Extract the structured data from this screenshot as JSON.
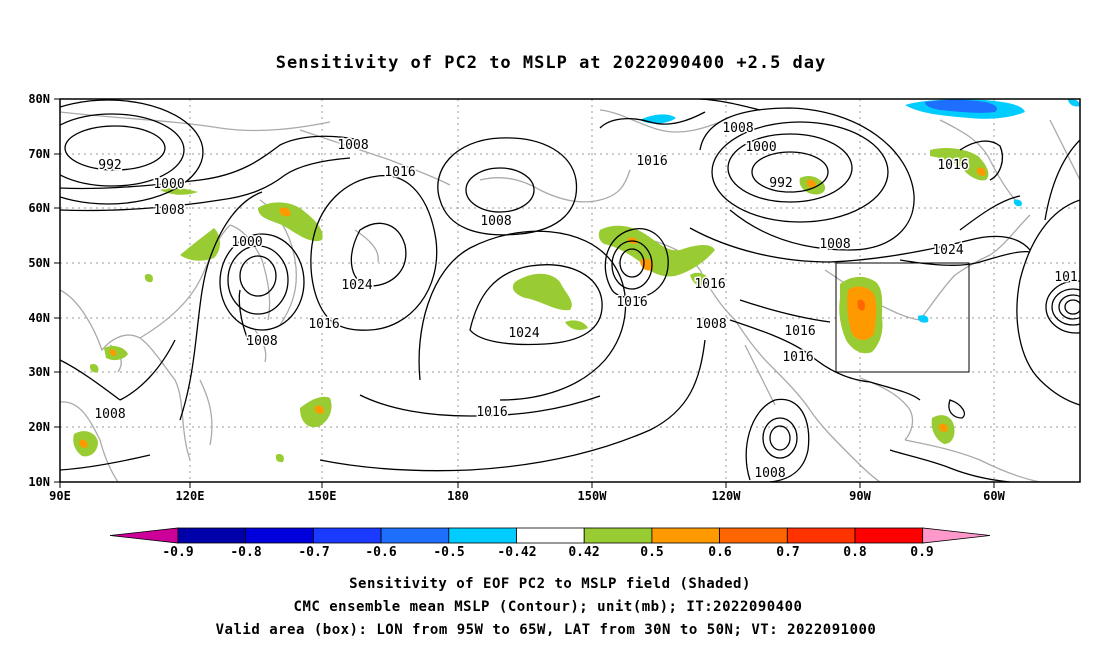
{
  "title": "Sensitivity of PC2 to MSLP at 2022090400 +2.5 day",
  "lat_ticks": [
    "80N",
    "70N",
    "60N",
    "50N",
    "40N",
    "30N",
    "20N",
    "10N"
  ],
  "lon_ticks": [
    "90E",
    "120E",
    "150E",
    "180",
    "150W",
    "120W",
    "90W",
    "60W"
  ],
  "contour_labels": [
    "992",
    "1000",
    "1008",
    "1008",
    "1016",
    "1000",
    "1024",
    "1008",
    "1016",
    "1008",
    "1016",
    "1024",
    "1016",
    "1016",
    "1008",
    "1008",
    "1000",
    "992",
    "1008",
    "1016",
    "1024",
    "1016",
    "1016",
    "1016",
    "1008",
    "1008",
    "101"
  ],
  "colorbar": {
    "labels": [
      "-0.9",
      "-0.8",
      "-0.7",
      "-0.6",
      "-0.5",
      "-0.42",
      "0.42",
      "0.5",
      "0.6",
      "0.7",
      "0.8",
      "0.9"
    ],
    "colors": [
      "#cc0099",
      "#0000aa",
      "#0000dd",
      "#1a3aff",
      "#1f6fff",
      "#00aaff",
      "#00ccff",
      "#ffffff",
      "#99cc33",
      "#ff9900",
      "#ff6600",
      "#ff3300",
      "#ff0000",
      "#ff99cc"
    ]
  },
  "valid_box": {
    "lon": "95W to 65W",
    "lat": "30N to 50N"
  },
  "captions": [
    "Sensitivity of EOF PC2 to MSLP field (Shaded)",
    "CMC ensemble mean MSLP (Contour); unit(mb); IT:2022090400",
    "Valid area (box): LON from 95W to 65W, LAT from 30N to 50N; VT: 2022091000"
  ]
}
